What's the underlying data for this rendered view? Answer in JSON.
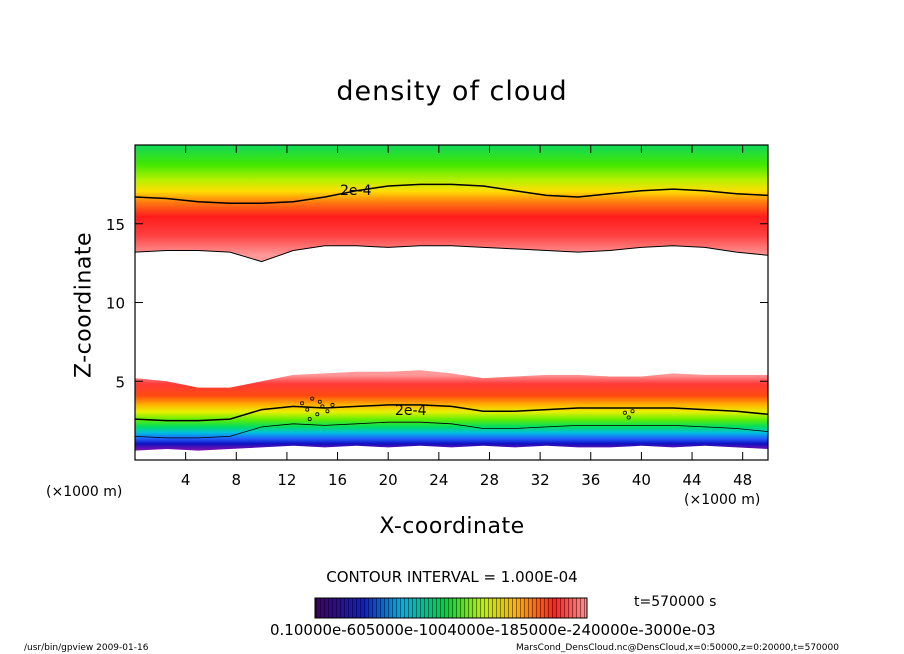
{
  "chart_data": {
    "type": "heatmap",
    "title": "density of cloud",
    "xlabel": "X-coordinate",
    "ylabel": "Z-coordinate",
    "x_unit_left": "(×1000 m)",
    "x_unit_right": "(×1000 m)",
    "xlim": [
      0,
      50
    ],
    "ylim": [
      0,
      20
    ],
    "x_ticks": [
      4,
      8,
      12,
      16,
      20,
      24,
      28,
      32,
      36,
      40,
      44,
      48
    ],
    "y_ticks": [
      5,
      10,
      15
    ],
    "contour_label": "2e-4",
    "contour_interval_text": "CONTOUR INTERVAL = 1.000E-04",
    "time_text": "t=570000 s",
    "colorbar_ticks_text": "0.10000e-605000e-1004000e-185000e-240000e-3000e-03",
    "colors": {
      "low": "#4b0082",
      "mid_low": "#0000ff",
      "mid": "#00ff00",
      "mid_high": "#ffff00",
      "high": "#ff0000",
      "peak": "#ff9090",
      "empty": "#ffffff"
    },
    "upper_layer": {
      "contour_2e4_top_z": [
        16.7,
        16.6,
        16.4,
        16.3,
        16.3,
        16.4,
        16.7,
        17.1,
        17.4,
        17.5,
        17.5,
        17.4,
        17.1,
        16.8,
        16.7,
        16.9,
        17.1,
        17.2,
        17.1,
        16.9,
        16.8
      ],
      "bottom_edge_z": [
        13.2,
        13.3,
        13.3,
        13.2,
        12.6,
        13.3,
        13.6,
        13.6,
        13.5,
        13.6,
        13.6,
        13.5,
        13.4,
        13.3,
        13.2,
        13.3,
        13.5,
        13.6,
        13.5,
        13.2,
        13.0
      ]
    },
    "lower_layer": {
      "top_edge_z": [
        5.2,
        5.0,
        4.6,
        4.6,
        5.0,
        5.4,
        5.5,
        5.6,
        5.6,
        5.7,
        5.5,
        5.2,
        5.3,
        5.4,
        5.4,
        5.3,
        5.3,
        5.5,
        5.4,
        5.4,
        5.4
      ],
      "contour_2e4_z": [
        2.6,
        2.5,
        2.5,
        2.6,
        3.2,
        3.4,
        3.3,
        3.4,
        3.5,
        3.5,
        3.4,
        3.1,
        3.1,
        3.2,
        3.3,
        3.3,
        3.3,
        3.3,
        3.2,
        3.1,
        2.9
      ],
      "bottom_edge_z": [
        0.6,
        0.7,
        0.6,
        0.7,
        0.8,
        0.9,
        0.8,
        0.9,
        0.8,
        0.9,
        0.8,
        0.9,
        0.8,
        0.9,
        0.8,
        0.8,
        0.9,
        0.8,
        0.9,
        0.8,
        0.7
      ]
    }
  },
  "footer": {
    "left": "/usr/bin/gpview   2009-01-16",
    "right": "MarsCond_DensCloud.nc@DensCloud,x=0:50000,z=0:20000,t=570000"
  }
}
